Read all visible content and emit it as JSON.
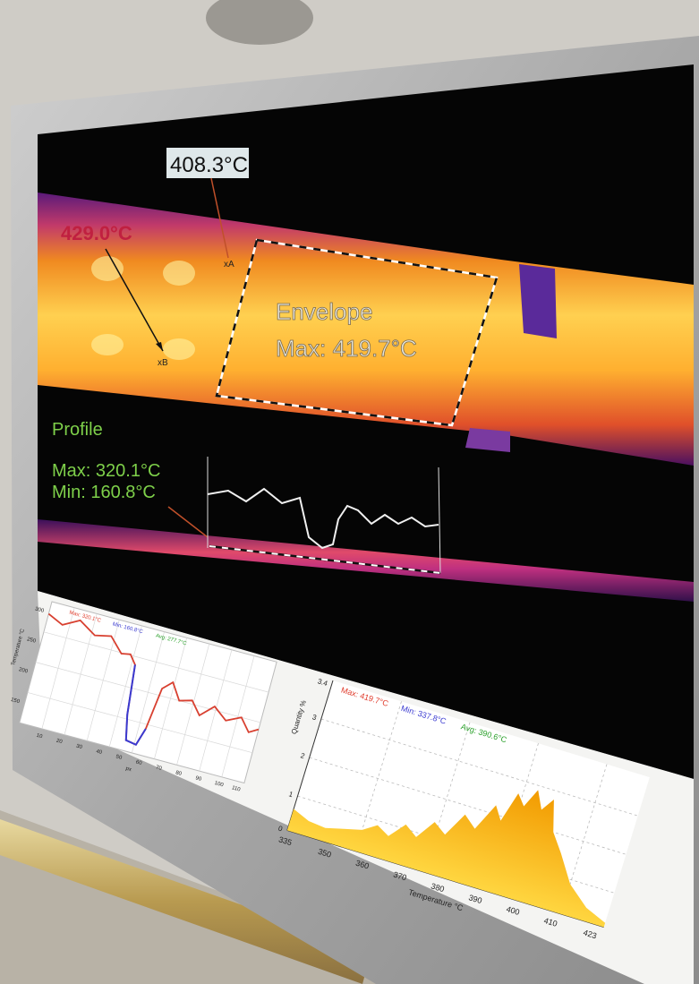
{
  "thermal": {
    "spot_a": "408.3°C",
    "spot_b": "429.0°C",
    "marker_a": "xA",
    "marker_b": "xB",
    "envelope_title": "Envelope",
    "envelope_max": "Max: 419.7°C",
    "profile_title": "Profile",
    "profile_max": "Max:  320.1°C",
    "profile_min": "Min:  160.8°C"
  },
  "profile_chart": {
    "legend_max": "Max: 320.1°C",
    "legend_min": "Min: 160.8°C",
    "legend_avg": "Avg: 277.7°C",
    "ylabel": "Temperature °C",
    "xlabel": "px",
    "y_ticks": [
      "300",
      "250",
      "200",
      "150"
    ],
    "x_ticks": [
      "10",
      "20",
      "30",
      "40",
      "50",
      "60",
      "70",
      "80",
      "90",
      "100",
      "110"
    ]
  },
  "histogram_chart": {
    "legend_max": "Max: 419.7°C",
    "legend_min": "Min: 337.8°C",
    "legend_avg": "Avg: 390.6°C",
    "ylabel": "Quantity %",
    "xlabel": "Temperature °C",
    "y_ticks": [
      "3.4",
      "3",
      "2",
      "1",
      "0"
    ],
    "x_ticks": [
      "335",
      "350",
      "360",
      "370",
      "380",
      "390",
      "400",
      "410",
      "423"
    ]
  },
  "colors": {
    "legend_max": "#e03a2a",
    "legend_min": "#3a3ad0",
    "legend_avg": "#2aa02a",
    "profile_line": "#d84030",
    "histogram_fill": "#f5b400",
    "annotation_green": "#7ed04a"
  }
}
